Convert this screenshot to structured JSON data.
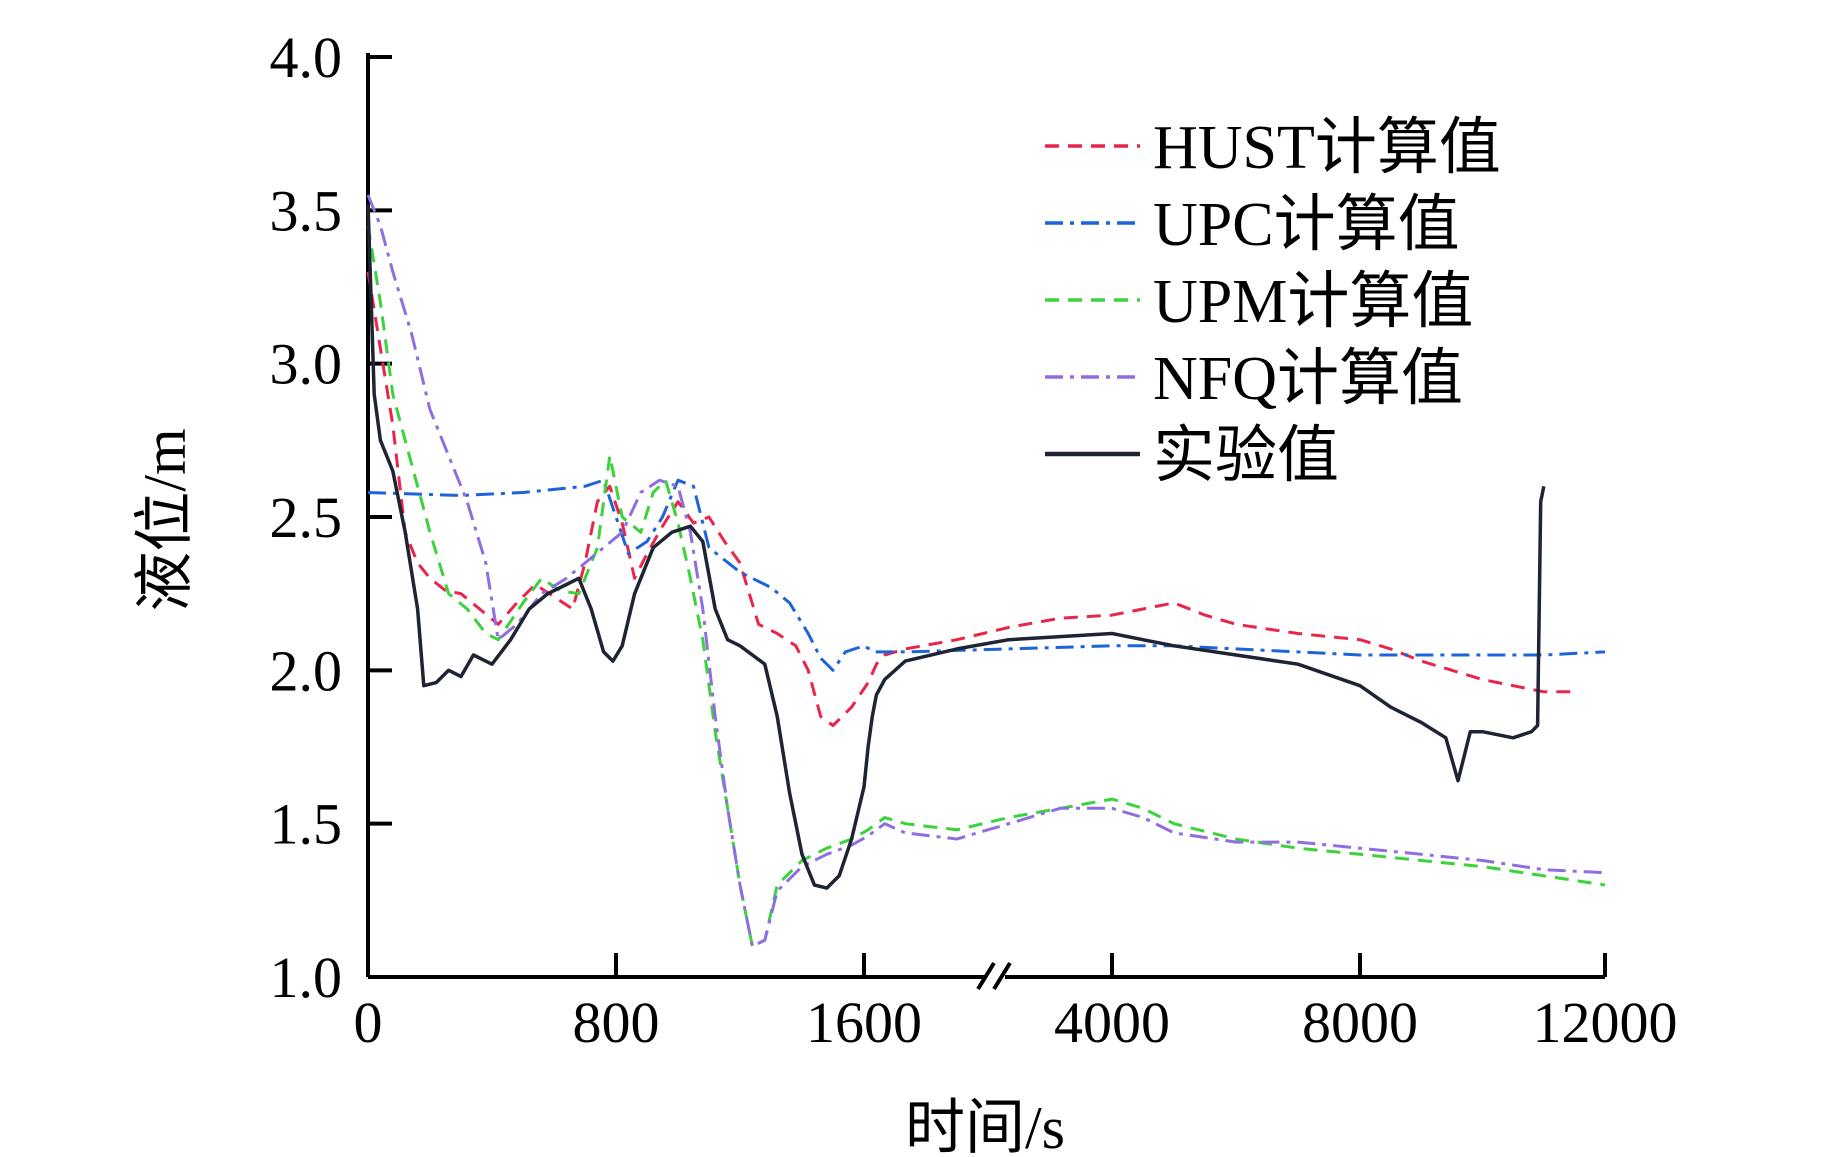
{
  "chart_data": {
    "type": "line",
    "title": "",
    "xlabel": "时间/s",
    "ylabel": "液位/m",
    "ylim": [
      1.0,
      4.0
    ],
    "yticks": [
      "1.0",
      "1.5",
      "2.0",
      "2.5",
      "3.0",
      "3.5",
      "4.0"
    ],
    "xticks": [
      "0",
      "800",
      "1600",
      "4000",
      "8000",
      "12000"
    ],
    "x_axis_break": "between 1600 and 4000",
    "legend_position": "top-right",
    "grid": false,
    "series": [
      {
        "name": "HUST计算值",
        "color": "#e8254a",
        "style": "dashed",
        "points": [
          [
            0,
            3.3
          ],
          [
            40,
            3.05
          ],
          [
            80,
            2.8
          ],
          [
            120,
            2.45
          ],
          [
            160,
            2.35
          ],
          [
            200,
            2.3
          ],
          [
            250,
            2.26
          ],
          [
            300,
            2.25
          ],
          [
            360,
            2.2
          ],
          [
            420,
            2.15
          ],
          [
            480,
            2.22
          ],
          [
            540,
            2.28
          ],
          [
            600,
            2.24
          ],
          [
            660,
            2.2
          ],
          [
            700,
            2.35
          ],
          [
            740,
            2.55
          ],
          [
            780,
            2.6
          ],
          [
            820,
            2.48
          ],
          [
            860,
            2.3
          ],
          [
            900,
            2.38
          ],
          [
            950,
            2.47
          ],
          [
            1000,
            2.55
          ],
          [
            1050,
            2.48
          ],
          [
            1100,
            2.5
          ],
          [
            1150,
            2.42
          ],
          [
            1200,
            2.35
          ],
          [
            1260,
            2.15
          ],
          [
            1320,
            2.12
          ],
          [
            1380,
            2.08
          ],
          [
            1420,
            2.0
          ],
          [
            1460,
            1.85
          ],
          [
            1500,
            1.82
          ],
          [
            1560,
            1.88
          ],
          [
            1640,
            1.96
          ],
          [
            1720,
            2.02
          ],
          [
            1800,
            2.05
          ],
          [
            2000,
            2.07
          ],
          [
            2500,
            2.1
          ],
          [
            3000,
            2.14
          ],
          [
            3500,
            2.17
          ],
          [
            4000,
            2.18
          ],
          [
            4500,
            2.2
          ],
          [
            5000,
            2.22
          ],
          [
            5500,
            2.18
          ],
          [
            6000,
            2.15
          ],
          [
            7000,
            2.12
          ],
          [
            8000,
            2.1
          ],
          [
            8500,
            2.07
          ],
          [
            9000,
            2.03
          ],
          [
            9500,
            2.0
          ],
          [
            10000,
            1.97
          ],
          [
            10500,
            1.95
          ],
          [
            11000,
            1.93
          ],
          [
            11500,
            1.93
          ]
        ]
      },
      {
        "name": "UPC计算值",
        "color": "#1f63d8",
        "style": "dash-dot",
        "points": [
          [
            0,
            2.58
          ],
          [
            300,
            2.57
          ],
          [
            500,
            2.58
          ],
          [
            700,
            2.6
          ],
          [
            760,
            2.62
          ],
          [
            800,
            2.5
          ],
          [
            840,
            2.38
          ],
          [
            900,
            2.42
          ],
          [
            950,
            2.5
          ],
          [
            1000,
            2.62
          ],
          [
            1050,
            2.6
          ],
          [
            1100,
            2.4
          ],
          [
            1200,
            2.32
          ],
          [
            1300,
            2.27
          ],
          [
            1360,
            2.22
          ],
          [
            1420,
            2.12
          ],
          [
            1460,
            2.04
          ],
          [
            1500,
            2.0
          ],
          [
            1540,
            2.06
          ],
          [
            1600,
            2.08
          ],
          [
            1700,
            2.06
          ],
          [
            2000,
            2.06
          ],
          [
            3000,
            2.07
          ],
          [
            4000,
            2.08
          ],
          [
            5000,
            2.08
          ],
          [
            6000,
            2.07
          ],
          [
            7000,
            2.06
          ],
          [
            8000,
            2.05
          ],
          [
            9000,
            2.05
          ],
          [
            10000,
            2.05
          ],
          [
            11000,
            2.05
          ],
          [
            12000,
            2.06
          ]
        ]
      },
      {
        "name": "UPM计算值",
        "color": "#3bd23b",
        "style": "dashed",
        "points": [
          [
            0,
            3.45
          ],
          [
            40,
            3.2
          ],
          [
            80,
            2.9
          ],
          [
            120,
            2.75
          ],
          [
            160,
            2.6
          ],
          [
            200,
            2.45
          ],
          [
            260,
            2.25
          ],
          [
            320,
            2.2
          ],
          [
            380,
            2.12
          ],
          [
            420,
            2.1
          ],
          [
            500,
            2.22
          ],
          [
            560,
            2.3
          ],
          [
            620,
            2.26
          ],
          [
            680,
            2.25
          ],
          [
            740,
            2.4
          ],
          [
            780,
            2.7
          ],
          [
            820,
            2.5
          ],
          [
            880,
            2.45
          ],
          [
            920,
            2.58
          ],
          [
            960,
            2.62
          ],
          [
            1000,
            2.48
          ],
          [
            1040,
            2.3
          ],
          [
            1080,
            2.1
          ],
          [
            1120,
            1.8
          ],
          [
            1160,
            1.55
          ],
          [
            1200,
            1.3
          ],
          [
            1240,
            1.1
          ],
          [
            1280,
            1.12
          ],
          [
            1320,
            1.3
          ],
          [
            1400,
            1.38
          ],
          [
            1480,
            1.42
          ],
          [
            1560,
            1.45
          ],
          [
            1640,
            1.48
          ],
          [
            1720,
            1.5
          ],
          [
            1800,
            1.52
          ],
          [
            2000,
            1.5
          ],
          [
            2500,
            1.48
          ],
          [
            3000,
            1.52
          ],
          [
            3500,
            1.55
          ],
          [
            4000,
            1.58
          ],
          [
            4500,
            1.55
          ],
          [
            5000,
            1.5
          ],
          [
            6000,
            1.45
          ],
          [
            7000,
            1.42
          ],
          [
            8000,
            1.4
          ],
          [
            9000,
            1.38
          ],
          [
            10000,
            1.36
          ],
          [
            11000,
            1.33
          ],
          [
            12000,
            1.3
          ]
        ]
      },
      {
        "name": "NFQ计算值",
        "color": "#8f6fe0",
        "style": "dash-dot",
        "points": [
          [
            0,
            3.55
          ],
          [
            40,
            3.45
          ],
          [
            80,
            3.3
          ],
          [
            140,
            3.1
          ],
          [
            200,
            2.85
          ],
          [
            260,
            2.7
          ],
          [
            320,
            2.55
          ],
          [
            380,
            2.35
          ],
          [
            420,
            2.1
          ],
          [
            480,
            2.15
          ],
          [
            560,
            2.25
          ],
          [
            640,
            2.3
          ],
          [
            700,
            2.35
          ],
          [
            760,
            2.4
          ],
          [
            820,
            2.45
          ],
          [
            880,
            2.58
          ],
          [
            940,
            2.62
          ],
          [
            1000,
            2.6
          ],
          [
            1040,
            2.45
          ],
          [
            1080,
            2.2
          ],
          [
            1120,
            1.85
          ],
          [
            1160,
            1.55
          ],
          [
            1200,
            1.3
          ],
          [
            1240,
            1.1
          ],
          [
            1280,
            1.12
          ],
          [
            1320,
            1.28
          ],
          [
            1400,
            1.36
          ],
          [
            1480,
            1.4
          ],
          [
            1560,
            1.43
          ],
          [
            1640,
            1.46
          ],
          [
            1720,
            1.48
          ],
          [
            1800,
            1.5
          ],
          [
            2000,
            1.47
          ],
          [
            2500,
            1.45
          ],
          [
            3000,
            1.5
          ],
          [
            3500,
            1.55
          ],
          [
            4000,
            1.55
          ],
          [
            4500,
            1.52
          ],
          [
            5000,
            1.47
          ],
          [
            6000,
            1.44
          ],
          [
            7000,
            1.44
          ],
          [
            8000,
            1.42
          ],
          [
            9000,
            1.4
          ],
          [
            10000,
            1.38
          ],
          [
            11000,
            1.35
          ],
          [
            12000,
            1.34
          ]
        ]
      },
      {
        "name": "实验值",
        "color": "#1e2433",
        "style": "solid",
        "points": [
          [
            0,
            3.52
          ],
          [
            20,
            2.9
          ],
          [
            40,
            2.75
          ],
          [
            80,
            2.65
          ],
          [
            120,
            2.45
          ],
          [
            160,
            2.2
          ],
          [
            180,
            1.95
          ],
          [
            220,
            1.96
          ],
          [
            260,
            2.0
          ],
          [
            300,
            1.98
          ],
          [
            340,
            2.05
          ],
          [
            400,
            2.02
          ],
          [
            460,
            2.1
          ],
          [
            520,
            2.2
          ],
          [
            580,
            2.25
          ],
          [
            640,
            2.28
          ],
          [
            680,
            2.3
          ],
          [
            720,
            2.2
          ],
          [
            760,
            2.06
          ],
          [
            790,
            2.03
          ],
          [
            820,
            2.08
          ],
          [
            860,
            2.25
          ],
          [
            920,
            2.4
          ],
          [
            980,
            2.45
          ],
          [
            1040,
            2.47
          ],
          [
            1080,
            2.42
          ],
          [
            1120,
            2.2
          ],
          [
            1160,
            2.1
          ],
          [
            1200,
            2.08
          ],
          [
            1240,
            2.05
          ],
          [
            1280,
            2.02
          ],
          [
            1320,
            1.85
          ],
          [
            1360,
            1.6
          ],
          [
            1400,
            1.4
          ],
          [
            1440,
            1.3
          ],
          [
            1480,
            1.29
          ],
          [
            1520,
            1.33
          ],
          [
            1560,
            1.45
          ],
          [
            1600,
            1.62
          ],
          [
            1640,
            1.75
          ],
          [
            1680,
            1.85
          ],
          [
            1720,
            1.92
          ],
          [
            1800,
            1.97
          ],
          [
            2000,
            2.03
          ],
          [
            2500,
            2.07
          ],
          [
            3000,
            2.1
          ],
          [
            3500,
            2.11
          ],
          [
            4000,
            2.12
          ],
          [
            4500,
            2.1
          ],
          [
            5000,
            2.08
          ],
          [
            6000,
            2.05
          ],
          [
            7000,
            2.02
          ],
          [
            8000,
            1.95
          ],
          [
            8500,
            1.88
          ],
          [
            9000,
            1.83
          ],
          [
            9400,
            1.78
          ],
          [
            9600,
            1.64
          ],
          [
            9800,
            1.8
          ],
          [
            10000,
            1.8
          ],
          [
            10500,
            1.78
          ],
          [
            10800,
            1.8
          ],
          [
            10900,
            1.82
          ],
          [
            10950,
            2.55
          ],
          [
            11000,
            2.6
          ]
        ]
      }
    ]
  }
}
